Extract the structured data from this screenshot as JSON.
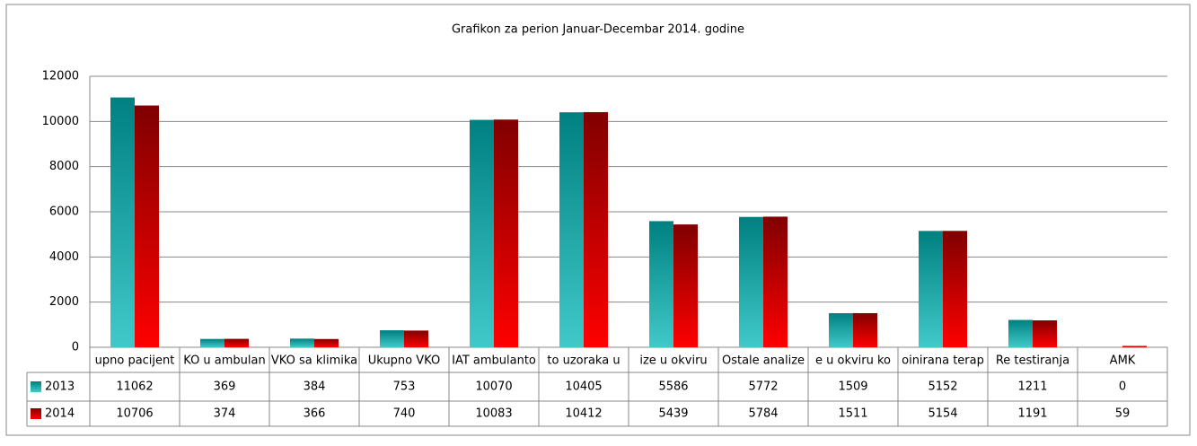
{
  "chart_data": {
    "type": "bar",
    "title": "Grafikon za perion Januar-Decembar 2014. godine",
    "categories": [
      "upno pacijent",
      "KO u ambulan",
      "VKO sa klimika",
      "Ukupno VKO",
      "IAT ambulanto",
      "to uzoraka u",
      "ize u okviru",
      "Ostale analize",
      "e u okviru ko",
      "oinirana terap",
      "Re testiranja",
      "AMK"
    ],
    "series": [
      {
        "name": "2013",
        "color": "#008080",
        "values": [
          11062,
          369,
          384,
          753,
          10070,
          10405,
          5586,
          5772,
          1509,
          5152,
          1211,
          0
        ]
      },
      {
        "name": "2014",
        "color": "#800000",
        "values": [
          10706,
          374,
          366,
          740,
          10083,
          10412,
          5439,
          5784,
          1511,
          5154,
          1191,
          59
        ]
      }
    ],
    "ylim": [
      0,
      12000
    ],
    "yticks": [
      0,
      2000,
      4000,
      6000,
      8000,
      10000,
      12000
    ],
    "grid": true,
    "legend": "table"
  }
}
